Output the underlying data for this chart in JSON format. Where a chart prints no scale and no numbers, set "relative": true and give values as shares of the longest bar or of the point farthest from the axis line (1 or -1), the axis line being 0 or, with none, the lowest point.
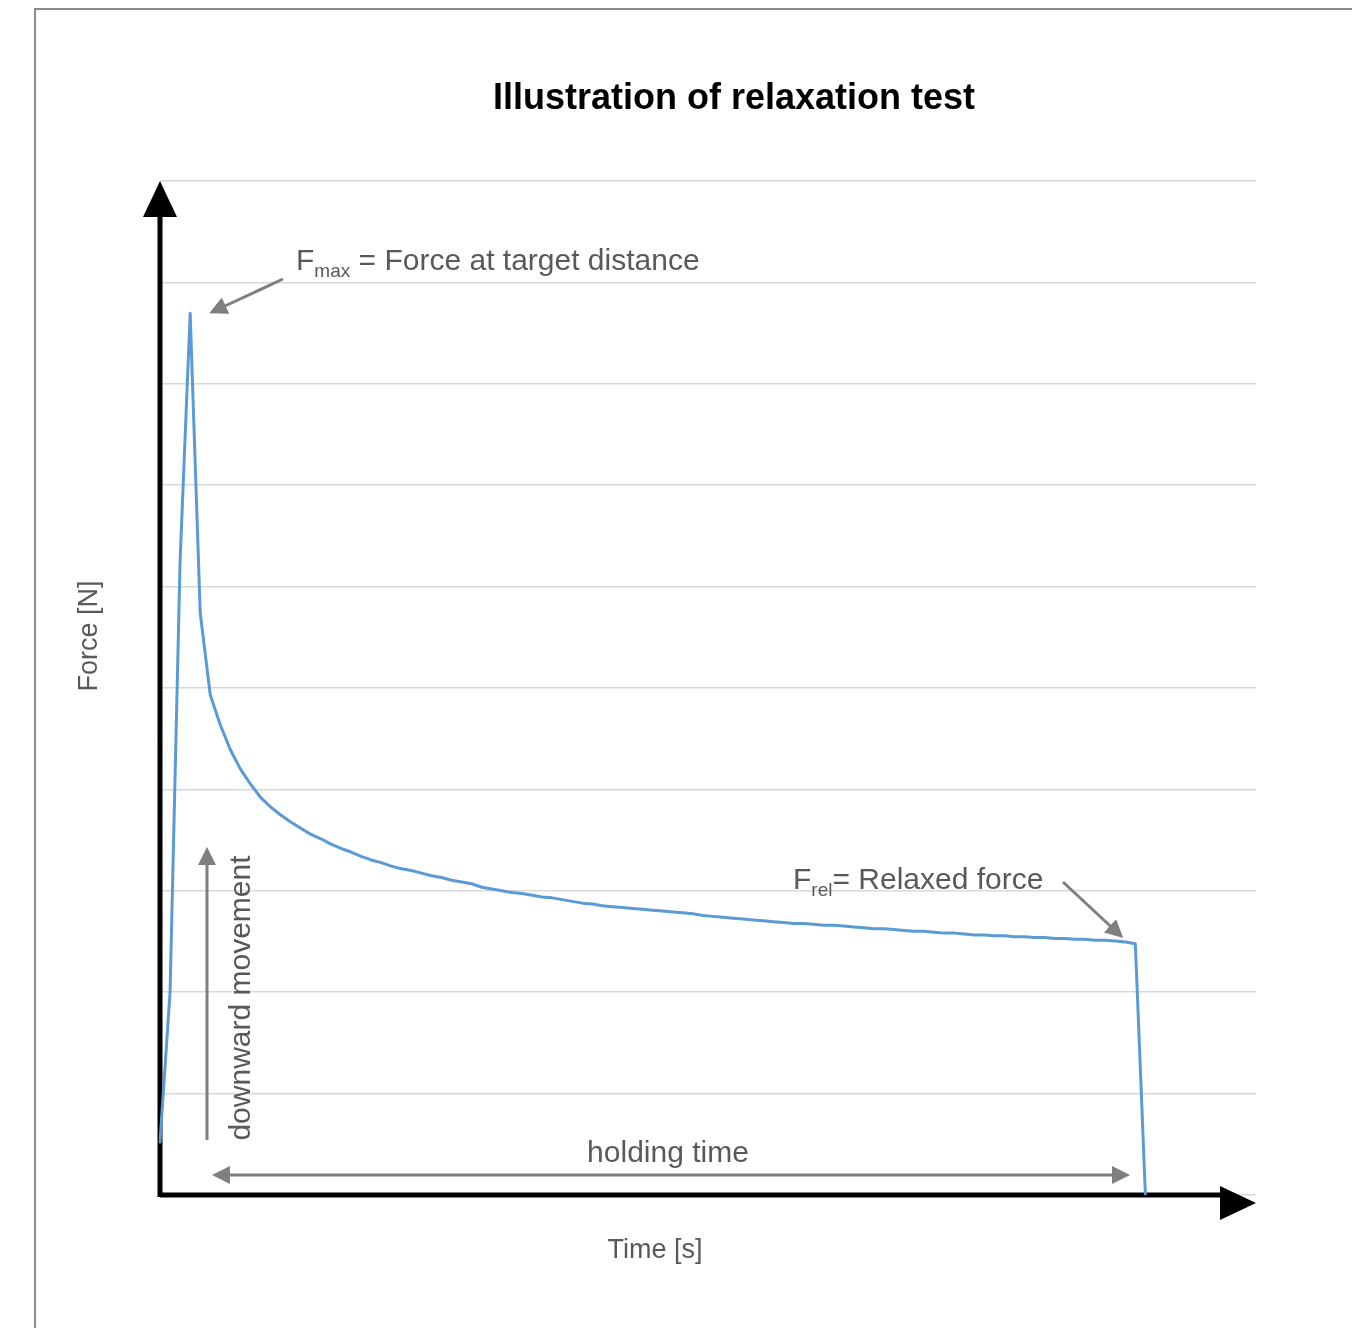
{
  "chart_data": {
    "type": "line",
    "title": "Illustration of relaxation test",
    "xlabel": "Time [s]",
    "ylabel": "Force [N]",
    "annotations": [
      "F$_{max}$ = Force at target distance",
      "F$_{rel}$= Relaxed force",
      "holding time",
      "downward movement"
    ],
    "categories": [
      null,
      null,
      null,
      null,
      null,
      null,
      null,
      null,
      null,
      null,
      null,
      null,
      null,
      null,
      null,
      null,
      null,
      null,
      null,
      null,
      null,
      null,
      null,
      null,
      null,
      null,
      null,
      null,
      null,
      null,
      null,
      null,
      null,
      null,
      null,
      null,
      null,
      null,
      null,
      null,
      null,
      null,
      null,
      null,
      null,
      null,
      null,
      null,
      null,
      null,
      null,
      null,
      null,
      null,
      null,
      null,
      null,
      null,
      null,
      null,
      null,
      null,
      null,
      null,
      null,
      null,
      null,
      null,
      null,
      null,
      null,
      null,
      null,
      null,
      null,
      null,
      null,
      null,
      null,
      null,
      null,
      null,
      null,
      null,
      null,
      null,
      null,
      null,
      null,
      null,
      null,
      null,
      null,
      null,
      null,
      null,
      null,
      null,
      null,
      null,
      null,
      null,
      null,
      null,
      null,
      null,
      null,
      null,
      null,
      null
    ],
    "series": [
      {
        "color": "#5b9bd5",
        "values": [
          0.06,
          0.23,
          0.72,
          1,
          0.66,
          0.567,
          0.533,
          0.505,
          0.483,
          0.466,
          0.451,
          0.44,
          0.431,
          0.423,
          0.416,
          0.409,
          0.404,
          0.398,
          0.393,
          0.389,
          0.384,
          0.38,
          0.377,
          0.373,
          0.37,
          0.368,
          0.365,
          0.362,
          0.36,
          0.357,
          0.355,
          0.353,
          0.349,
          0.347,
          0.345,
          0.343,
          0.342,
          0.34,
          0.338,
          0.337,
          0.335,
          0.333,
          0.331,
          0.33,
          0.328,
          0.327,
          0.326,
          0.325,
          0.324,
          0.323,
          0.322,
          0.321,
          0.32,
          0.319,
          0.317,
          0.316,
          0.315,
          0.314,
          0.313,
          0.312,
          0.311,
          0.31,
          0.309,
          0.308,
          0.308,
          0.307,
          0.306,
          0.306,
          0.305,
          0.304,
          0.303,
          0.302,
          0.302,
          0.301,
          0.3,
          0.299,
          0.299,
          0.298,
          0.297,
          0.297,
          0.296,
          0.295,
          0.295,
          0.294,
          0.294,
          0.293,
          0.293,
          0.292,
          0.292,
          0.291,
          0.291,
          0.29,
          0.29,
          0.289,
          0.289,
          0.288,
          0.287,
          0.285,
          0,
          null,
          null,
          null,
          null,
          null,
          null,
          null,
          null,
          null,
          null,
          null
        ]
      }
    ],
    "relative": true,
    "grid": "y"
  }
}
